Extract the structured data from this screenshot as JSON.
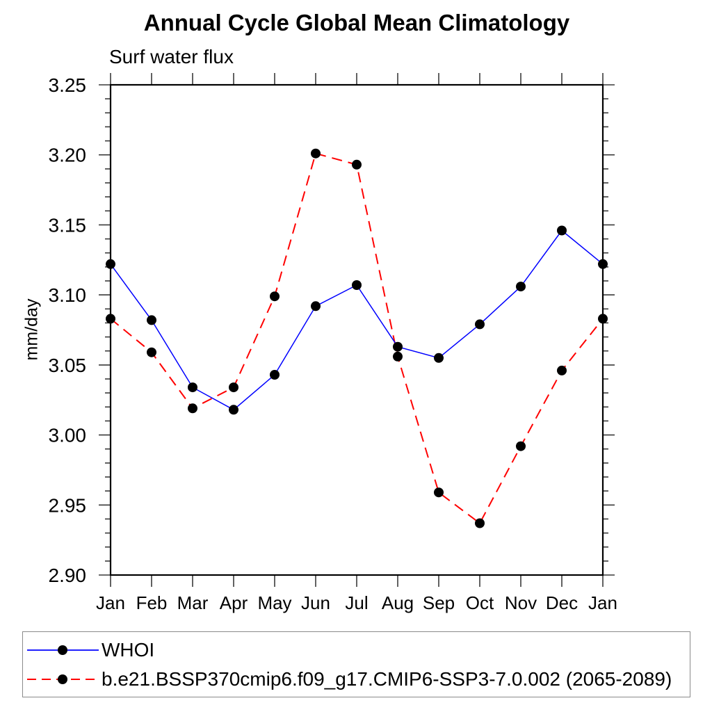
{
  "title": "Annual Cycle Global Mean Climatology",
  "subtitle": "Surf water flux",
  "ylabel": "mm/day",
  "chart_data": {
    "type": "line",
    "categories": [
      "Jan",
      "Feb",
      "Mar",
      "Apr",
      "May",
      "Jun",
      "Jul",
      "Aug",
      "Sep",
      "Oct",
      "Nov",
      "Dec",
      "Jan"
    ],
    "series": [
      {
        "name": "WHOI",
        "color": "#0000ff",
        "dash": "solid",
        "marker": "filled-circle",
        "values": [
          3.122,
          3.082,
          3.034,
          3.018,
          3.043,
          3.092,
          3.107,
          3.063,
          3.055,
          3.079,
          3.106,
          3.146,
          3.122
        ]
      },
      {
        "name": "b.e21.BSSP370cmip6.f09_g17.CMIP6-SSP3-7.0.002 (2065-2089)",
        "color": "#ff0000",
        "dash": "dashed",
        "marker": "filled-circle",
        "values": [
          3.083,
          3.059,
          3.019,
          3.034,
          3.099,
          3.201,
          3.193,
          3.056,
          2.959,
          2.937,
          2.992,
          3.046,
          3.083
        ]
      }
    ],
    "ylim": [
      2.9,
      3.25
    ],
    "yticks": [
      "2.90",
      "2.95",
      "3.00",
      "3.05",
      "3.10",
      "3.15",
      "3.20",
      "3.25"
    ],
    "minor_tick_step": 0.01,
    "grid": false,
    "legend_position": "bottom",
    "marker_color": "#000000",
    "frame_color": "#000000"
  }
}
